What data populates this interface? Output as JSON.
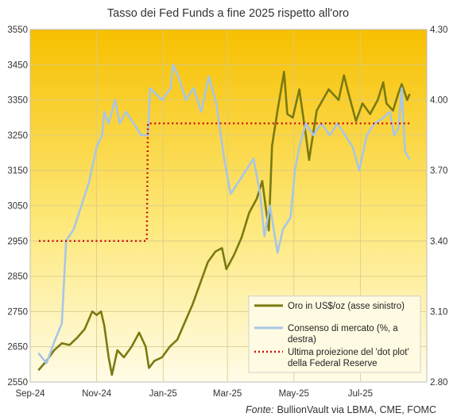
{
  "chart_data": {
    "type": "line",
    "title": "Tasso dei Fed Funds a fine 2025 rispetto all'oro",
    "source": {
      "prefix": "Fonte:",
      "text": "BullionVault via LBMA, CME, FOMC"
    },
    "xlim": [
      "2024-09-01",
      "2025-08-31"
    ],
    "x_ticks": [
      {
        "date": "2024-09-01",
        "label": "Sep-24"
      },
      {
        "date": "2024-11-01",
        "label": "Nov-24"
      },
      {
        "date": "2025-01-01",
        "label": "Jan-25"
      },
      {
        "date": "2025-03-01",
        "label": "Mar-25"
      },
      {
        "date": "2025-05-01",
        "label": "May-25"
      },
      {
        "date": "2025-07-01",
        "label": "Jul-25"
      }
    ],
    "y_left": {
      "lim": [
        2550,
        3550
      ],
      "ticks": [
        2550,
        2650,
        2750,
        2850,
        2950,
        3050,
        3150,
        3250,
        3350,
        3450,
        3550
      ]
    },
    "y_right": {
      "lim": [
        2.8,
        4.3
      ],
      "ticks": [
        "2.80",
        "3.10",
        "3.40",
        "3.70",
        "4.00",
        "4.30"
      ]
    },
    "grid": true,
    "background": {
      "top": "#f7c000",
      "bottom": "#fffce8"
    },
    "legend_position": "bottom-right",
    "series": [
      {
        "name": "Oro in US$/oz (asse sinistro)",
        "axis": "left",
        "color": "#7a7a10",
        "points": [
          [
            "2024-09-09",
            2585
          ],
          [
            "2024-09-16",
            2610
          ],
          [
            "2024-09-23",
            2640
          ],
          [
            "2024-09-30",
            2660
          ],
          [
            "2024-10-07",
            2655
          ],
          [
            "2024-10-14",
            2675
          ],
          [
            "2024-10-21",
            2700
          ],
          [
            "2024-10-28",
            2750
          ],
          [
            "2024-11-01",
            2740
          ],
          [
            "2024-11-05",
            2750
          ],
          [
            "2024-11-08",
            2710
          ],
          [
            "2024-11-12",
            2620
          ],
          [
            "2024-11-15",
            2570
          ],
          [
            "2024-11-20",
            2640
          ],
          [
            "2024-11-26",
            2620
          ],
          [
            "2024-12-03",
            2650
          ],
          [
            "2024-12-10",
            2690
          ],
          [
            "2024-12-16",
            2650
          ],
          [
            "2024-12-19",
            2590
          ],
          [
            "2024-12-24",
            2610
          ],
          [
            "2024-12-31",
            2620
          ],
          [
            "2025-01-07",
            2650
          ],
          [
            "2025-01-14",
            2670
          ],
          [
            "2025-01-21",
            2720
          ],
          [
            "2025-01-28",
            2770
          ],
          [
            "2025-02-04",
            2830
          ],
          [
            "2025-02-11",
            2890
          ],
          [
            "2025-02-18",
            2920
          ],
          [
            "2025-02-24",
            2930
          ],
          [
            "2025-02-28",
            2870
          ],
          [
            "2025-03-07",
            2910
          ],
          [
            "2025-03-14",
            2960
          ],
          [
            "2025-03-21",
            3030
          ],
          [
            "2025-03-28",
            3070
          ],
          [
            "2025-04-02",
            3120
          ],
          [
            "2025-04-08",
            2980
          ],
          [
            "2025-04-11",
            3220
          ],
          [
            "2025-04-16",
            3320
          ],
          [
            "2025-04-22",
            3430
          ],
          [
            "2025-04-25",
            3310
          ],
          [
            "2025-04-30",
            3300
          ],
          [
            "2025-05-06",
            3380
          ],
          [
            "2025-05-12",
            3250
          ],
          [
            "2025-05-15",
            3180
          ],
          [
            "2025-05-22",
            3320
          ],
          [
            "2025-06-02",
            3380
          ],
          [
            "2025-06-11",
            3350
          ],
          [
            "2025-06-16",
            3420
          ],
          [
            "2025-06-20",
            3370
          ],
          [
            "2025-06-27",
            3290
          ],
          [
            "2025-07-03",
            3340
          ],
          [
            "2025-07-10",
            3310
          ],
          [
            "2025-07-17",
            3350
          ],
          [
            "2025-07-22",
            3400
          ],
          [
            "2025-07-25",
            3340
          ],
          [
            "2025-07-31",
            3320
          ],
          [
            "2025-08-05",
            3370
          ],
          [
            "2025-08-08",
            3395
          ],
          [
            "2025-08-13",
            3350
          ],
          [
            "2025-08-15",
            3365
          ]
        ]
      },
      {
        "name": "Consenso di mercato (%, a destra)",
        "axis": "right",
        "color": "#a7c6e8",
        "points": [
          [
            "2024-09-09",
            2.92
          ],
          [
            "2024-09-16",
            2.88
          ],
          [
            "2024-09-23",
            2.97
          ],
          [
            "2024-09-30",
            3.05
          ],
          [
            "2024-10-04",
            3.4
          ],
          [
            "2024-10-11",
            3.45
          ],
          [
            "2024-10-18",
            3.55
          ],
          [
            "2024-10-25",
            3.65
          ],
          [
            "2024-11-01",
            3.8
          ],
          [
            "2024-11-06",
            3.85
          ],
          [
            "2024-11-08",
            3.95
          ],
          [
            "2024-11-12",
            3.9
          ],
          [
            "2024-11-18",
            4.0
          ],
          [
            "2024-11-22",
            3.9
          ],
          [
            "2024-11-28",
            3.95
          ],
          [
            "2024-12-05",
            3.9
          ],
          [
            "2024-12-12",
            3.85
          ],
          [
            "2024-12-18",
            3.85
          ],
          [
            "2024-12-20",
            4.05
          ],
          [
            "2024-12-31",
            4.0
          ],
          [
            "2025-01-08",
            4.05
          ],
          [
            "2025-01-10",
            4.15
          ],
          [
            "2025-01-15",
            4.1
          ],
          [
            "2025-01-22",
            4.0
          ],
          [
            "2025-01-29",
            4.05
          ],
          [
            "2025-02-05",
            3.95
          ],
          [
            "2025-02-12",
            4.1
          ],
          [
            "2025-02-19",
            3.98
          ],
          [
            "2025-02-26",
            3.75
          ],
          [
            "2025-03-04",
            3.6
          ],
          [
            "2025-03-11",
            3.65
          ],
          [
            "2025-03-18",
            3.7
          ],
          [
            "2025-03-25",
            3.75
          ],
          [
            "2025-03-31",
            3.6
          ],
          [
            "2025-04-04",
            3.42
          ],
          [
            "2025-04-09",
            3.55
          ],
          [
            "2025-04-16",
            3.35
          ],
          [
            "2025-04-21",
            3.45
          ],
          [
            "2025-04-28",
            3.5
          ],
          [
            "2025-05-02",
            3.7
          ],
          [
            "2025-05-06",
            3.8
          ],
          [
            "2025-05-12",
            3.9
          ],
          [
            "2025-05-19",
            3.85
          ],
          [
            "2025-05-26",
            3.9
          ],
          [
            "2025-06-03",
            3.85
          ],
          [
            "2025-06-10",
            3.9
          ],
          [
            "2025-06-17",
            3.85
          ],
          [
            "2025-06-24",
            3.8
          ],
          [
            "2025-06-30",
            3.7
          ],
          [
            "2025-07-07",
            3.85
          ],
          [
            "2025-07-14",
            3.9
          ],
          [
            "2025-07-21",
            3.92
          ],
          [
            "2025-07-28",
            3.95
          ],
          [
            "2025-08-01",
            3.85
          ],
          [
            "2025-08-05",
            3.88
          ],
          [
            "2025-08-08",
            4.05
          ],
          [
            "2025-08-11",
            3.78
          ],
          [
            "2025-08-15",
            3.75
          ]
        ]
      },
      {
        "name": "Ultima proiezione del 'dot plot' della Federal Reserve",
        "axis": "right",
        "color": "#cc1111",
        "style": "dotted",
        "points": [
          [
            "2024-09-09",
            3.4
          ],
          [
            "2024-12-17",
            3.4
          ],
          [
            "2024-12-18",
            3.9
          ],
          [
            "2025-08-15",
            3.9
          ]
        ]
      }
    ],
    "legend": [
      {
        "lines": [
          "Oro in US$/oz (asse sinistro)"
        ]
      },
      {
        "lines": [
          "Consenso di mercato (%, a",
          "destra)"
        ]
      },
      {
        "lines": [
          "Ultima proiezione del 'dot plot'",
          "della Federal Reserve"
        ]
      }
    ]
  }
}
